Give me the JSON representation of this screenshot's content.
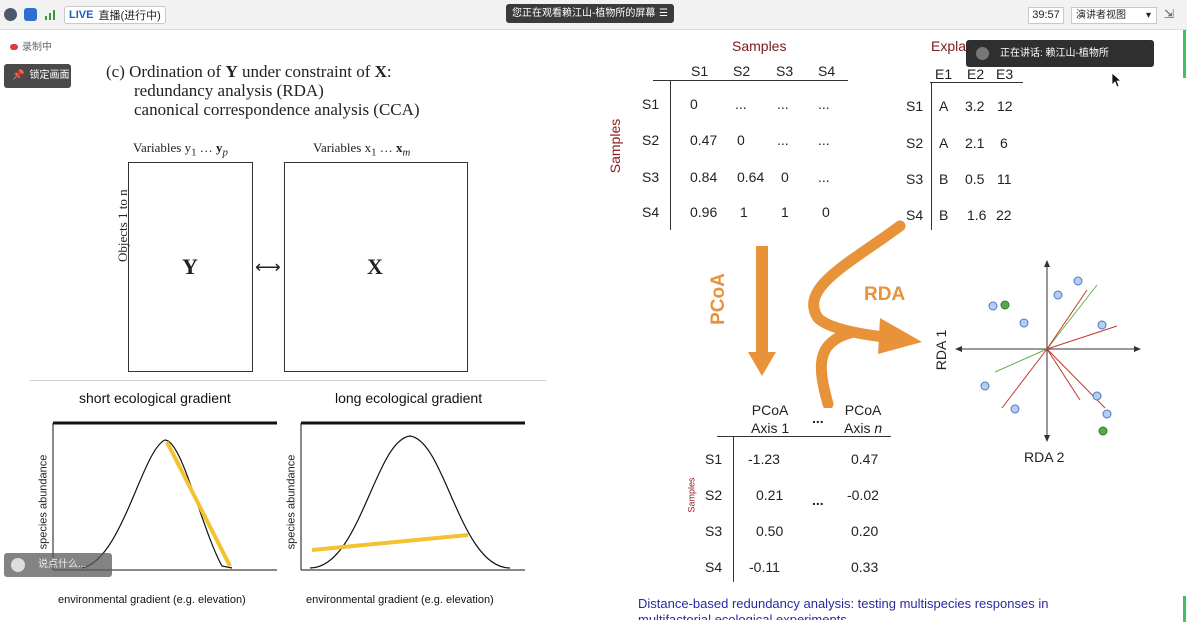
{
  "topbar": {
    "live_label": "LIVE",
    "live_status": "直播(进行中)",
    "screen_banner": "您正在观看赖江山-植物所的屏幕",
    "banner_menu": "☰",
    "timer": "39:57",
    "view_select": "演讲者视图",
    "view_caret": "▾",
    "shrink": "⇲"
  },
  "overlays": {
    "rec_text": "录制中",
    "pin_label": "锁定画面",
    "speaking_label": "正在讲话: 赖江山-植物所",
    "chat_placeholder": "说点什么..."
  },
  "slide_left": {
    "title_prefix": "(c) Ordination of ",
    "title_Y": "Y",
    "title_mid": " under constraint of ",
    "title_X": "X",
    "title_colon": ":",
    "sub1": "redundancy analysis (RDA)",
    "sub2": "canonical correspondence analysis (CCA)",
    "vars_y": "Variables y",
    "vars_y_sub1": "1",
    "vars_y_dots": " … ",
    "vars_y_end": "y",
    "vars_y_subp": "p",
    "vars_x": "Variables x",
    "vars_x_sub1": "1",
    "vars_x_dots": " … ",
    "vars_x_end": "x",
    "vars_x_subm": "m",
    "objects": "Objects 1 to n",
    "box_y": "Y",
    "box_x": "X",
    "arrow": "⟷",
    "short_title": "short ecological gradient",
    "long_title": "long ecological gradient",
    "y_axis_label": "species abundance",
    "x_axis_label": "environmental gradient (e.g. elevation)"
  },
  "slide_right": {
    "samples_header": "Samples",
    "explan_header": "Expla",
    "samples_side": "Samples",
    "dist_cols": [
      "S1",
      "S2",
      "S3",
      "S4"
    ],
    "dist_rows": [
      {
        "label": "S1",
        "cells": [
          "0",
          "...",
          "...",
          "..."
        ]
      },
      {
        "label": "S2",
        "cells": [
          "0.47",
          "0",
          "...",
          "..."
        ]
      },
      {
        "label": "S3",
        "cells": [
          "0.84",
          "0.64",
          "0",
          "..."
        ]
      },
      {
        "label": "S4",
        "cells": [
          "0.96",
          "1",
          "1",
          "0"
        ]
      }
    ],
    "env_cols": [
      "E1",
      "E2",
      "E3"
    ],
    "env_rows": [
      {
        "label": "S1",
        "cells": [
          "A",
          "3.2",
          "12"
        ]
      },
      {
        "label": "S2",
        "cells": [
          "A",
          "2.1",
          "6"
        ]
      },
      {
        "label": "S3",
        "cells": [
          "B",
          "0.5",
          "11"
        ]
      },
      {
        "label": "S4",
        "cells": [
          "B",
          "1.6",
          "22"
        ]
      }
    ],
    "pcoa_arrow_label": "PCoA",
    "rda_arrow_label": "RDA",
    "pcoa_col1_line1": "PCoA",
    "pcoa_col1_line2": "Axis 1",
    "pcoa_dots": "...",
    "pcoa_coln_line1": "PCoA",
    "pcoa_coln_line2": "Axis ",
    "pcoa_coln_italic": "n",
    "pcoa_side": "Samples",
    "pcoa_rows": [
      {
        "label": "S1",
        "a1": "-1.23",
        "an": "0.47"
      },
      {
        "label": "S2",
        "a1": "0.21",
        "an": "-0.02"
      },
      {
        "label": "S3",
        "a1": "0.50",
        "an": "0.20"
      },
      {
        "label": "S4",
        "a1": "-0.11",
        "an": "0.33"
      }
    ],
    "pcoa_mid_dots": "...",
    "rda1": "RDA 1",
    "rda2": "RDA 2",
    "paper_line1": "Distance-based redundancy analysis: testing multispecies responses in",
    "paper_line2": "multifactorial ecological experiments"
  },
  "colors": {
    "accent_orange": "#e8923a",
    "header_red": "#7a1a1a",
    "gradient_yellow": "#f2c230",
    "range_red": "#b52a2a",
    "link_blue": "#2a2aa0"
  }
}
